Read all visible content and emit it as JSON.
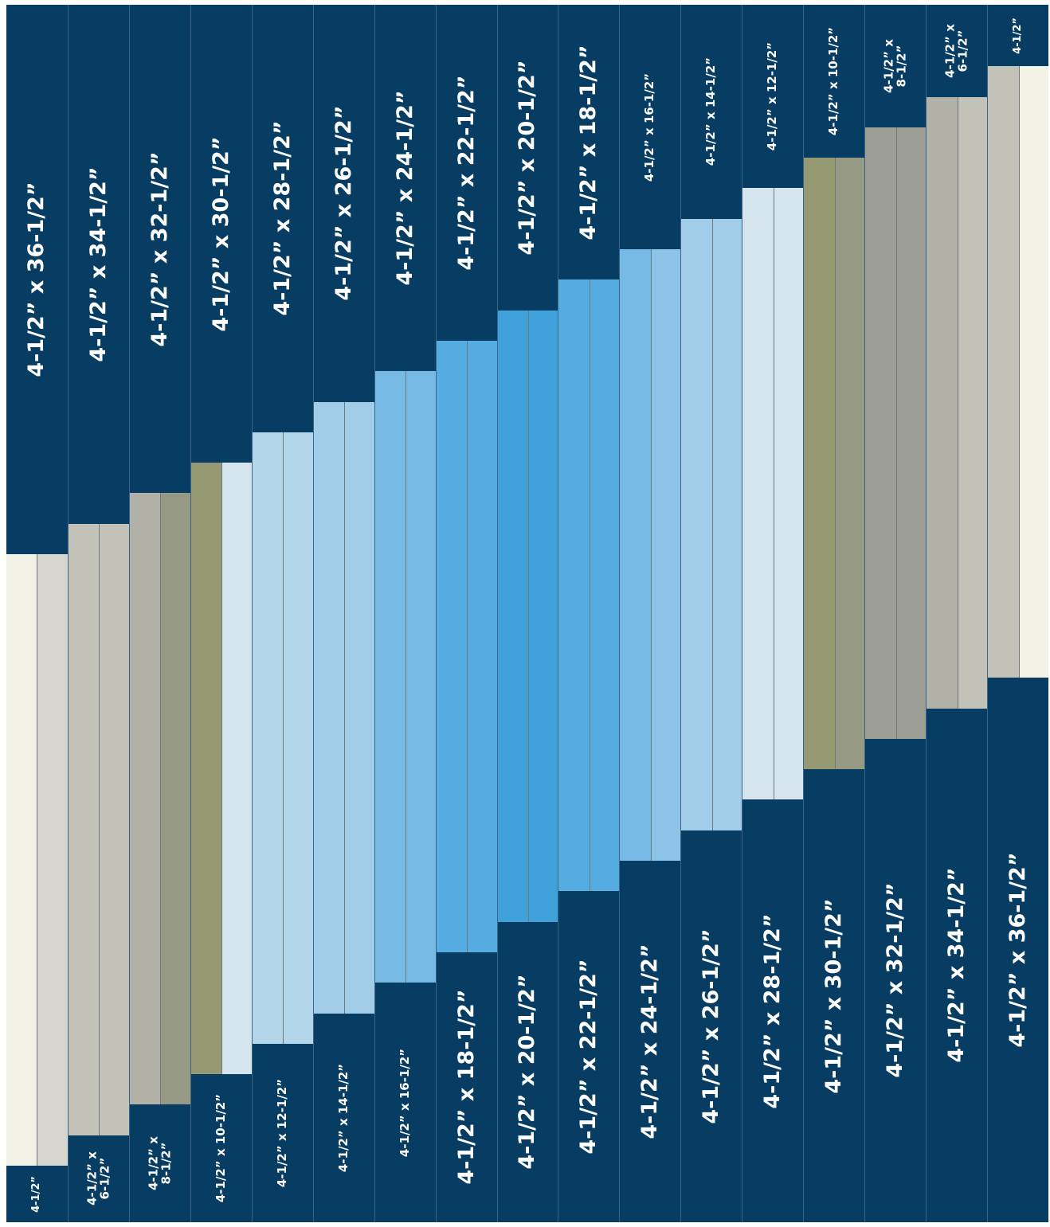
{
  "colors": {
    "navy": "#083d63",
    "cream": "#f3f2e6",
    "light_gray": "#d6d6cf",
    "warm_gray": "#c3c2b8",
    "gray": "#b2b1a7",
    "gray_green": "#969a84",
    "olive": "#969a72",
    "pale_blue": "#d4e5ee",
    "light_blue": "#b3d6ea",
    "sky_blue_1": "#a2cde8",
    "sky_blue_2": "#8cc3e7",
    "sky_blue_3": "#75b9e4",
    "sky_blue_4": "#63b2e2",
    "sky_blue_5": "#55ace0",
    "bright_blue": "#40a0d9",
    "dark_gray": "#9c9d95"
  },
  "columns": [
    {
      "top_label": "4-1/2” x 36-1/2”",
      "bottom_label": "4-1/2”",
      "fill": [
        "#f3f2e6",
        "#d6d6cf"
      ]
    },
    {
      "top_label": "4-1/2” x 34-1/2”",
      "bottom_label": "4-1/2” x\n6-1/2”",
      "fill": [
        "#c3c2b8",
        "#c3c2b8"
      ]
    },
    {
      "top_label": "4-1/2” x 32-1/2”",
      "bottom_label": "4-1/2” x\n8-1/2”",
      "fill": [
        "#b2b1a7",
        "#969a84"
      ]
    },
    {
      "top_label": "4-1/2” x 30-1/2”",
      "bottom_label": "4-1/2” x 10-1/2”",
      "fill": [
        "#969a72",
        "#d4e5ee"
      ]
    },
    {
      "top_label": "4-1/2” x 28-1/2”",
      "bottom_label": "4-1/2” x 12-1/2”",
      "fill": [
        "#b3d6ea",
        "#b3d6ea"
      ]
    },
    {
      "top_label": "4-1/2” x 26-1/2”",
      "bottom_label": "4-1/2” x 14-1/2”",
      "fill": [
        "#a2cde8",
        "#a2cde8"
      ]
    },
    {
      "top_label": "4-1/2” x 24-1/2”",
      "bottom_label": "4-1/2” x 16-1/2”",
      "fill": [
        "#75b9e4",
        "#75b9e4"
      ]
    },
    {
      "top_label": "4-1/2” x 22-1/2”",
      "bottom_label": "4-1/2” x 18-1/2”",
      "fill": [
        "#55ace0",
        "#55ace0"
      ]
    },
    {
      "top_label": "4-1/2” x 20-1/2”",
      "bottom_label": "4-1/2” x 20-1/2”",
      "fill": [
        "#40a0d9",
        "#40a0d9"
      ]
    },
    {
      "top_label": "4-1/2” x 18-1/2”",
      "bottom_label": "4-1/2” x 22-1/2”",
      "fill": [
        "#55ace0",
        "#55ace0"
      ]
    },
    {
      "top_label": "4-1/2” x 16-1/2”",
      "bottom_label": "4-1/2” x 24-1/2”",
      "fill": [
        "#75b9e4",
        "#8cc3e7"
      ]
    },
    {
      "top_label": "4-1/2” x 14-1/2”",
      "bottom_label": "4-1/2” x 26-1/2”",
      "fill": [
        "#a2cde8",
        "#a2cde8"
      ]
    },
    {
      "top_label": "4-1/2” x 12-1/2”",
      "bottom_label": "4-1/2” x 28-1/2”",
      "fill": [
        "#d4e5ee",
        "#d4e5ee"
      ]
    },
    {
      "top_label": "4-1/2” x 10-1/2”",
      "bottom_label": "4-1/2” x 30-1/2”",
      "fill": [
        "#969a72",
        "#969a84"
      ]
    },
    {
      "top_label": "4-1/2” x\n8-1/2”",
      "bottom_label": "4-1/2” x 32-1/2”",
      "fill": [
        "#9c9d95",
        "#9c9d95"
      ]
    },
    {
      "top_label": "4-1/2” x\n6-1/2”",
      "bottom_label": "4-1/2” x 34-1/2”",
      "fill": [
        "#b2b1a7",
        "#c3c2b8"
      ]
    },
    {
      "top_label": "4-1/2”",
      "bottom_label": "4-1/2” x 36-1/2”",
      "fill": [
        "#c3c2b8",
        "#f3f2e6"
      ]
    }
  ]
}
